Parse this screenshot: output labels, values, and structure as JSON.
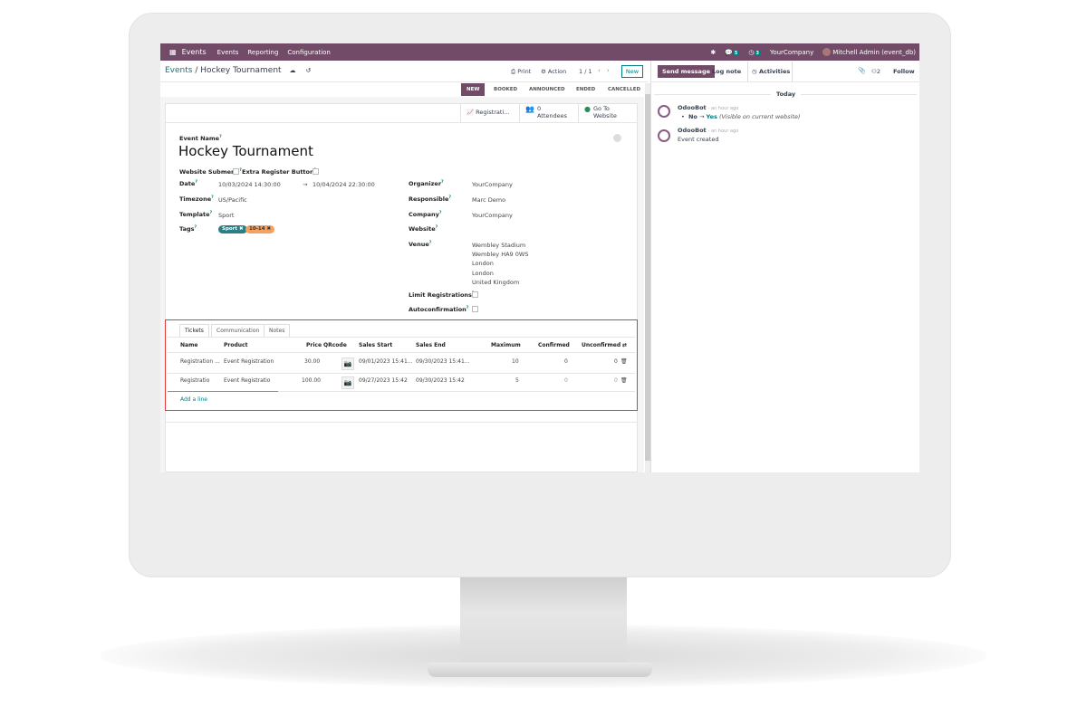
{
  "navbar": {
    "app": "Events",
    "menu": [
      "Events",
      "Reporting",
      "Configuration"
    ],
    "messages_count": "5",
    "activities_count": "3",
    "company": "YourCompany",
    "user": "Mitchell Admin (event_db)"
  },
  "control": {
    "breadcrumb_root": "Events",
    "breadcrumb_current": "Hockey Tournament",
    "print": "Print",
    "action": "Action",
    "pager": "1 / 1",
    "new": "New"
  },
  "stages": {
    "items": [
      "NEW",
      "BOOKED",
      "ANNOUNCED",
      "ENDED",
      "CANCELLED"
    ],
    "active": "NEW"
  },
  "smart_buttons": {
    "registrations": "Registrati...",
    "attendees_count": "0",
    "attendees": "Attendees",
    "website": "Go To Website"
  },
  "form": {
    "event_name_label": "Event Name",
    "event_name": "Hockey Tournament",
    "website_submenu": "Website Submenu",
    "extra_register": "Extra Register Button",
    "date_label": "Date",
    "date_start": "10/03/2024 14:30:00",
    "date_end": "10/04/2024 22:30:00",
    "timezone_label": "Timezone",
    "timezone": "US/Pacific",
    "template_label": "Template",
    "template": "Sport",
    "tags_label": "Tags",
    "tags": [
      "Sport",
      "10-14"
    ],
    "organizer_label": "Organizer",
    "organizer": "YourCompany",
    "responsible_label": "Responsible",
    "responsible": "Marc Demo",
    "company_label": "Company",
    "company": "YourCompany",
    "website_label": "Website",
    "venue_label": "Venue",
    "venue": [
      "Wembley Stadium",
      "Wembley HA9 0WS",
      "London",
      "London",
      "United Kingdom"
    ],
    "limit_label": "Limit Registrations",
    "autoconf_label": "Autoconfirmation"
  },
  "tabs": [
    "Tickets",
    "Communication",
    "Notes"
  ],
  "tickets": {
    "columns": [
      "Name",
      "Product",
      "Price",
      "QRcode",
      "Sales Start",
      "Sales End",
      "Maximum",
      "Confirmed",
      "Unconfirmed"
    ],
    "rows": [
      [
        "Registration ...",
        "Event Registration",
        "30.00",
        "",
        "09/01/2023 15:41...",
        "09/30/2023 15:41...",
        "10",
        "0",
        "0"
      ],
      [
        "Registratio",
        "Event Registratio",
        "100.00",
        "",
        "09/27/2023 15:42",
        "09/30/2023 15:42",
        "5",
        "0",
        "0"
      ]
    ],
    "add_line": "Add a line"
  },
  "chatter": {
    "send": "Send message",
    "log": "Log note",
    "activities": "Activities",
    "followers": "2",
    "follow": "Follow",
    "today": "Today",
    "messages": [
      {
        "author": "OdooBot",
        "time": "- an hour ago",
        "old": "No",
        "new": "Yes",
        "note": "(Visible on current website)"
      },
      {
        "author": "OdooBot",
        "time": "- an hour ago",
        "body": "Event created"
      }
    ]
  },
  "colors": {
    "brand": "#714b67",
    "accent": "#017e84",
    "highlight": "#e53935",
    "tag_sport": "#2a7f86",
    "tag_age": "#f4a261"
  }
}
